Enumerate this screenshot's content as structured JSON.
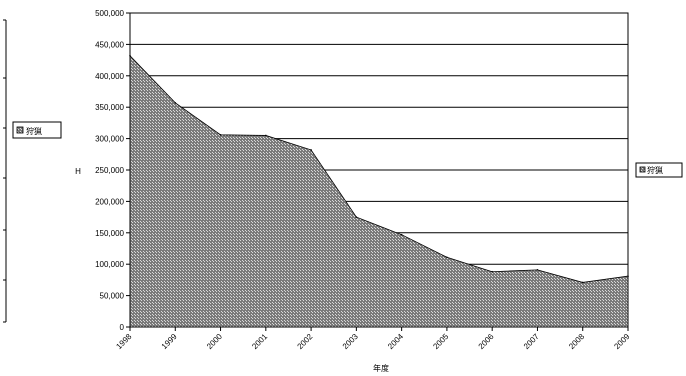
{
  "chart_data": {
    "type": "area",
    "x": [
      "1998",
      "1999",
      "2000",
      "2001",
      "2002",
      "2003",
      "2004",
      "2005",
      "2006",
      "2007",
      "2008",
      "2009"
    ],
    "x_tick_labels": [
      "1998",
      "1999",
      "2000",
      "2001",
      "2002",
      "2003",
      "2004",
      "2005",
      "2006",
      "2007",
      "2008",
      "2009"
    ],
    "series": [
      {
        "name": "狩猟",
        "values": [
          432000,
          357000,
          306000,
          305000,
          282000,
          175000,
          147000,
          111000,
          88000,
          91000,
          71000,
          81000
        ]
      }
    ],
    "ylim": [
      0,
      500000
    ],
    "y_ticks": [
      "0",
      "50,000",
      "100,000",
      "150,000",
      "200,000",
      "250,000",
      "300,000",
      "350,000",
      "400,000",
      "450,000",
      "500,000"
    ],
    "xlabel": "年度",
    "ylabel": "H",
    "grid": true,
    "legend": "right",
    "legend_left_label": "狩猟",
    "fill_color": "#7a7a7a",
    "hatch_color": "#d8d8d8"
  }
}
